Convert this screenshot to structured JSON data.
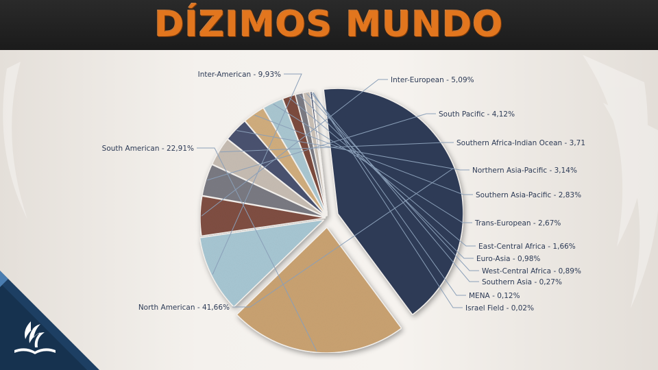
{
  "slide": {
    "title": "DÍZIMOS MUNDO"
  },
  "icons": {
    "logo": "adventist-church-logo-icon"
  },
  "chart_data": {
    "type": "pie",
    "title": "DÍZIMOS MUNDO",
    "slices": [
      {
        "key": "north-american",
        "label": "North American - 41,66%",
        "value": 41.66,
        "color": "#2f3b58"
      },
      {
        "key": "south-american",
        "label": "South American - 22,91%",
        "value": 22.91,
        "color": "#c9a271"
      },
      {
        "key": "inter-american",
        "label": "Inter-American - 9,93%",
        "value": 9.93,
        "color": "#a7c6d2"
      },
      {
        "key": "inter-european",
        "label": "Inter-European - 5,09%",
        "value": 5.09,
        "color": "#7f4e42"
      },
      {
        "key": "south-pacific",
        "label": "South Pacific - 4,12%",
        "value": 4.12,
        "color": "#7a7a82"
      },
      {
        "key": "southern-africa-indian-ocean",
        "label": "Southern Africa-Indian Ocean - 3,71",
        "value": 3.71,
        "color": "#c6bcb2"
      },
      {
        "key": "northern-asia-pacific",
        "label": "Northern Asia-Pacific - 3,14%",
        "value": 3.14,
        "color": "#4a5270"
      },
      {
        "key": "southern-asia-pacific",
        "label": "Southern Asia-Pacific - 2,83%",
        "value": 2.83,
        "color": "#d0ad7d"
      },
      {
        "key": "trans-european",
        "label": "Trans-European - 2,67%",
        "value": 2.67,
        "color": "#a9c6d0"
      },
      {
        "key": "east-central-africa",
        "label": "East-Central Africa - 1,66%",
        "value": 1.66,
        "color": "#7c4b3f"
      },
      {
        "key": "euro-asia",
        "label": "Euro-Asia - 0,98%",
        "value": 0.98,
        "color": "#7b7b83"
      },
      {
        "key": "west-central-africa",
        "label": "West-Central Africa - 0,89%",
        "value": 0.89,
        "color": "#c9bfb5"
      },
      {
        "key": "southern-asia",
        "label": "Southern Asia - 0,27%",
        "value": 0.27,
        "color": "#3d4563"
      },
      {
        "key": "mena",
        "label": "MENA - 0,12%",
        "value": 0.12,
        "color": "#d4b488"
      },
      {
        "key": "israel-field",
        "label": "Israel Field - 0,02%",
        "value": 0.02,
        "color": "#a6c3cd"
      }
    ],
    "legend": "none",
    "label_style": "leader lines"
  }
}
